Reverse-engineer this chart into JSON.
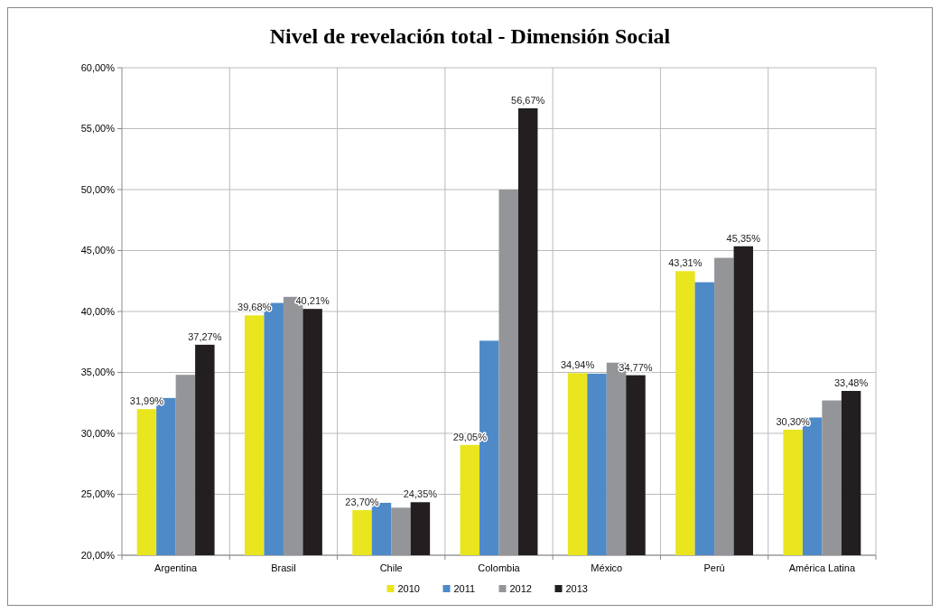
{
  "chart_data": {
    "type": "bar",
    "title": "Nivel de revelación total - Dimensión Social",
    "categories": [
      "Argentina",
      "Brasil",
      "Chile",
      "Colombia",
      "México",
      "Perú",
      "América Latina"
    ],
    "series": [
      {
        "name": "2010",
        "color": "#e9e51f",
        "values": [
          31.99,
          39.68,
          23.7,
          29.05,
          34.94,
          43.31,
          30.3
        ],
        "value_labels": [
          "31,99%",
          "39,68%",
          "23,70%",
          "29,05%",
          "34,94%",
          "43,31%",
          "30,30%"
        ]
      },
      {
        "name": "2011",
        "color": "#4e8ac8",
        "values": [
          32.9,
          40.7,
          24.3,
          37.6,
          34.9,
          42.4,
          31.3
        ]
      },
      {
        "name": "2012",
        "color": "#939598",
        "values": [
          34.8,
          41.2,
          23.9,
          50.0,
          35.8,
          44.4,
          32.7
        ]
      },
      {
        "name": "2013",
        "color": "#231f20",
        "values": [
          37.27,
          40.21,
          24.35,
          56.67,
          34.77,
          45.35,
          33.48
        ],
        "value_labels": [
          "37,27%",
          "40,21%",
          "24,35%",
          "56,67%",
          "34,77%",
          "45,35%",
          "33,48%"
        ]
      }
    ],
    "ylim": [
      20,
      60
    ],
    "yticks": [
      {
        "value": 20,
        "label": "20,00%"
      },
      {
        "value": 25,
        "label": "25,00%"
      },
      {
        "value": 30,
        "label": "30,00%"
      },
      {
        "value": 35,
        "label": "35,00%"
      },
      {
        "value": 40,
        "label": "40,00%"
      },
      {
        "value": 45,
        "label": "45,00%"
      },
      {
        "value": 50,
        "label": "50,00%"
      },
      {
        "value": 55,
        "label": "55,00%"
      },
      {
        "value": 60,
        "label": "60,00%"
      }
    ],
    "grid": true,
    "legend": "bottom"
  }
}
